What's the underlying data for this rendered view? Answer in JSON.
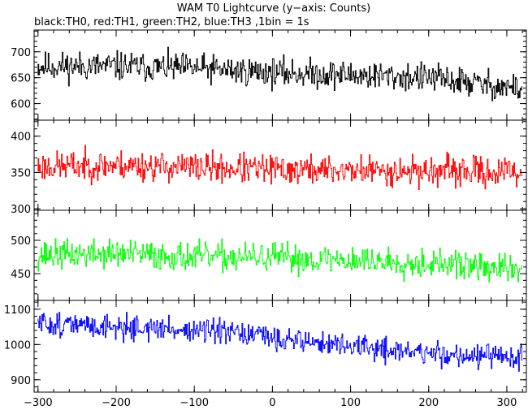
{
  "chart_data": {
    "type": "line",
    "title": "WAM T0 Lightcurve (y−axis: Counts)",
    "subtitle": "black:TH0, red:TH1, green:TH2, blue:TH3 ,1bin = 1s",
    "xlim": [
      -305,
      325
    ],
    "xticks": [
      -300,
      -200,
      -100,
      0,
      100,
      200,
      300
    ],
    "xtick_labels": [
      "−300",
      "−200",
      "−100",
      "0",
      "100",
      "200",
      "300"
    ],
    "x_start": -300,
    "x_end": 320,
    "bin": 1,
    "grid": false,
    "panels": [
      {
        "series": "TH0",
        "color": "#000000",
        "ylim": [
          568,
          742
        ],
        "yticks": [
          600,
          650,
          700
        ],
        "trend": [
          [
            -300,
            672
          ],
          [
            -200,
            672
          ],
          [
            -100,
            668
          ],
          [
            0,
            660
          ],
          [
            100,
            655
          ],
          [
            200,
            650
          ],
          [
            320,
            628
          ]
        ],
        "spread": 26,
        "seed": 11
      },
      {
        "series": "TH1",
        "color": "#ff0000",
        "ylim": [
          298,
          422
        ],
        "yticks": [
          300,
          350,
          400
        ],
        "trend": [
          [
            -300,
            358
          ],
          [
            -200,
            360
          ],
          [
            -100,
            357
          ],
          [
            0,
            354
          ],
          [
            100,
            353
          ],
          [
            200,
            352
          ],
          [
            320,
            350
          ]
        ],
        "spread": 19,
        "seed": 23
      },
      {
        "series": "TH2",
        "color": "#00ff00",
        "ylim": [
          410,
          545
        ],
        "yticks": [
          450,
          500
        ],
        "trend": [
          [
            -300,
            478
          ],
          [
            -200,
            480
          ],
          [
            -100,
            475
          ],
          [
            0,
            474
          ],
          [
            100,
            470
          ],
          [
            200,
            466
          ],
          [
            320,
            455
          ]
        ],
        "spread": 20,
        "seed": 37
      },
      {
        "series": "TH3",
        "color": "#0000ff",
        "ylim": [
          865,
          1125
        ],
        "yticks": [
          900,
          1000,
          1100
        ],
        "trend": [
          [
            -300,
            1060
          ],
          [
            -200,
            1050
          ],
          [
            -100,
            1040
          ],
          [
            0,
            1020
          ],
          [
            100,
            995
          ],
          [
            200,
            975
          ],
          [
            320,
            960
          ]
        ],
        "spread": 32,
        "seed": 51
      }
    ]
  }
}
